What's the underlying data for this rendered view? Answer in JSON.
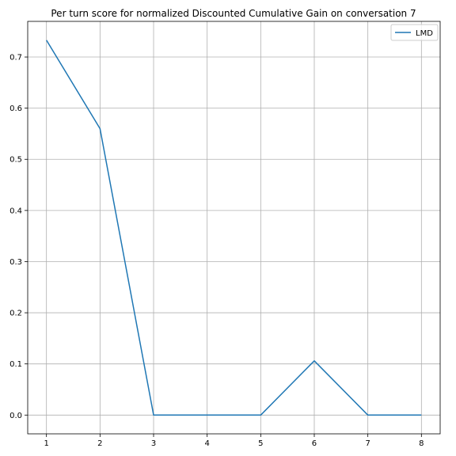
{
  "chart_data": {
    "type": "line",
    "title": "Per turn score for normalized Discounted Cumulative Gain on conversation 7",
    "xlabel": "",
    "ylabel": "",
    "x": [
      1,
      2,
      3,
      4,
      5,
      6,
      7,
      8
    ],
    "series": [
      {
        "name": "LMD",
        "color": "#1f77b4",
        "values": [
          0.733,
          0.56,
          0.0,
          0.0,
          0.0,
          0.106,
          0.0,
          0.0
        ]
      }
    ],
    "xlim": [
      0.65,
      8.35
    ],
    "ylim": [
      -0.0367,
      0.7697
    ],
    "xticks": [
      1,
      2,
      3,
      4,
      5,
      6,
      7,
      8
    ],
    "yticks": [
      0.0,
      0.1,
      0.2,
      0.3,
      0.4,
      0.5,
      0.6,
      0.7
    ],
    "ytick_labels": [
      "0.0",
      "0.1",
      "0.2",
      "0.3",
      "0.4",
      "0.5",
      "0.6",
      "0.7"
    ],
    "grid": true,
    "legend_position": "top-right"
  }
}
